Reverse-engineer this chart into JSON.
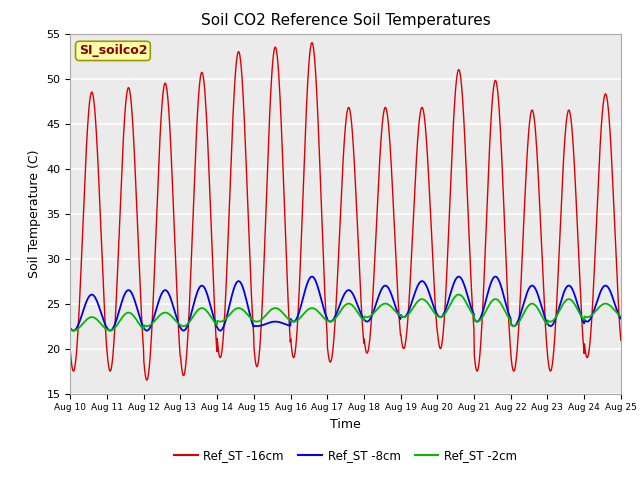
{
  "title": "Soil CO2 Reference Soil Temperatures",
  "xlabel": "Time",
  "ylabel": "Soil Temperature (C)",
  "ylim": [
    15,
    55
  ],
  "xlim": [
    0,
    15
  ],
  "background_color": "#ebebeb",
  "plot_bg_alt": "#f8f8f8",
  "legend_label": "SI_soilco2",
  "x_tick_labels": [
    "Aug 10",
    "Aug 11",
    "Aug 12",
    "Aug 13",
    "Aug 14",
    "Aug 15",
    "Aug 16",
    "Aug 17",
    "Aug 18",
    "Aug 19",
    "Aug 20",
    "Aug 21",
    "Aug 22",
    "Aug 23",
    "Aug 24",
    "Aug 25"
  ],
  "series": {
    "Ref_ST -16cm": {
      "color": "#dd0000",
      "linewidth": 1.0,
      "peaks": [
        48.5,
        49.0,
        49.5,
        50.7,
        53.0,
        53.5,
        54.0,
        46.8,
        46.8,
        46.8,
        51.0,
        49.8,
        46.5,
        46.5,
        48.3,
        48.0
      ],
      "troughs": [
        17.5,
        17.5,
        16.5,
        17.0,
        19.0,
        18.0,
        19.0,
        18.5,
        19.5,
        20.0,
        20.0,
        17.5,
        17.5,
        17.5,
        19.0,
        19.0
      ]
    },
    "Ref_ST -8cm": {
      "color": "#0000ee",
      "linewidth": 1.3,
      "peaks": [
        26.0,
        26.5,
        26.5,
        27.0,
        27.5,
        23.0,
        28.0,
        26.5,
        27.0,
        27.5,
        28.0,
        28.0,
        27.0,
        27.0,
        27.0,
        24.0
      ],
      "troughs": [
        22.0,
        22.0,
        22.0,
        22.0,
        22.0,
        22.5,
        23.0,
        23.0,
        23.0,
        23.5,
        23.5,
        23.0,
        22.5,
        22.5,
        23.0,
        23.5
      ]
    },
    "Ref_ST -2cm": {
      "color": "#00bb00",
      "linewidth": 1.3,
      "peaks": [
        23.5,
        24.0,
        24.0,
        24.5,
        24.5,
        24.5,
        24.5,
        25.0,
        25.0,
        25.5,
        26.0,
        25.5,
        25.0,
        25.5,
        25.0,
        25.0
      ],
      "troughs": [
        22.0,
        22.0,
        22.5,
        22.5,
        23.0,
        23.0,
        23.0,
        23.0,
        23.5,
        23.5,
        23.5,
        23.0,
        22.5,
        23.0,
        23.5,
        23.5
      ]
    }
  }
}
